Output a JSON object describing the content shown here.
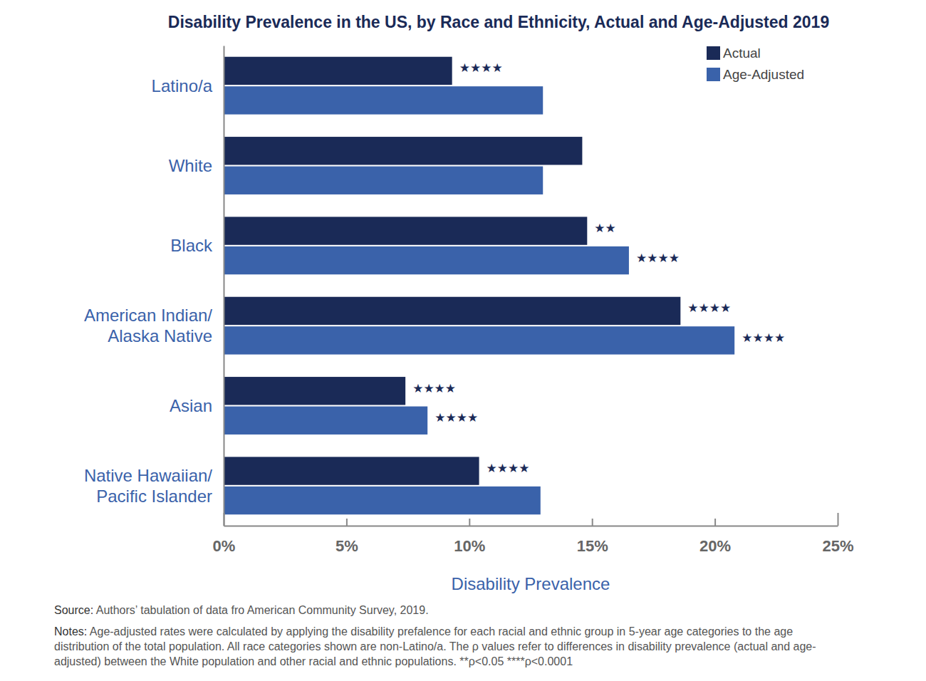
{
  "chart_data": {
    "type": "bar",
    "orientation": "horizontal",
    "title": "Disability Prevalence in the US, by Race and Ethnicity, Actual and Age-Adjusted 2019",
    "x_label": "Disability Prevalence",
    "categories": [
      "Latino/a",
      "White",
      "Black",
      "American Indian/\nAlaska Native",
      "Asian",
      "Native Hawaiian/\nPacific Islander"
    ],
    "series": [
      {
        "name": "Actual",
        "color": "#1a2a57",
        "values": [
          9.3,
          14.6,
          14.8,
          18.6,
          7.4,
          10.4
        ],
        "annotations": [
          "★★★★",
          null,
          "★★",
          "★★★★",
          "★★★★",
          "★★★★"
        ]
      },
      {
        "name": "Age-Adjusted",
        "color": "#3a62aa",
        "values": [
          13.0,
          13.0,
          16.5,
          20.8,
          8.3,
          12.9
        ],
        "annotations": [
          null,
          null,
          "★★★★",
          "★★★★",
          "★★★★",
          null
        ]
      }
    ],
    "xlim": [
      0,
      25
    ],
    "xticks": [
      {
        "value": 0,
        "label": "0%"
      },
      {
        "value": 5,
        "label": "5%"
      },
      {
        "value": 10,
        "label": "10%"
      },
      {
        "value": 15,
        "label": "15%"
      },
      {
        "value": 20,
        "label": "20%"
      },
      {
        "value": 25,
        "label": "25%"
      }
    ],
    "grid": false,
    "legend": "top-right",
    "source_label": "Source:",
    "source": "Authors’ tabulation of data fro American Community Survey, 2019.",
    "notes_label": "Notes:",
    "notes": "Age-adjusted rates were calculated by applying the disability prefalence for each racial and ethnic group in 5-year age categories to the age distribution of the total population. All race categories shown are non-Latino/a. The ρ values refer to differences in disability prevalence (actual and age-adjusted) between the White population and other racial and ethnic populations. **ρ<0.05  ****ρ<0.0001"
  }
}
